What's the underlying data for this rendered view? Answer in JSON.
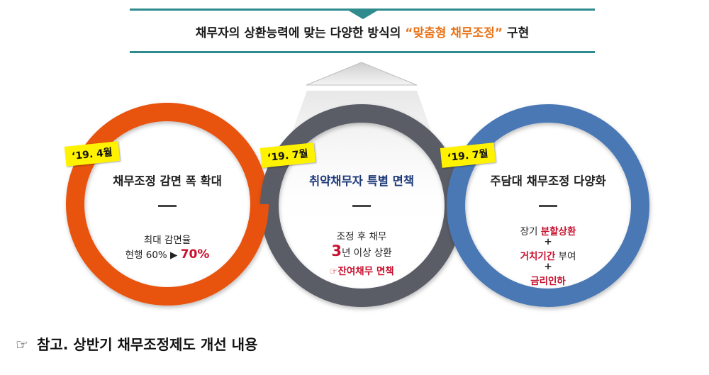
{
  "header": {
    "text_before": "채무자의 상환능력에 맞는 다양한 방식의 ",
    "highlight": "“맞춤형 채무조정”",
    "text_after": " 구현"
  },
  "rings": [
    {
      "date": "‘19. 4월",
      "title": "채무조정 감면 폭 확대",
      "line1": "최대 감면율",
      "line2_prefix": "현행 60% ▶ ",
      "line2_highlight": "70%",
      "color": "#e8520e"
    },
    {
      "date": "‘19. 7월",
      "title": "취약채무자 특별 면책",
      "line1": "조정 후 채무",
      "line2_big": "3",
      "line2_rest": "년 이상 상환",
      "line3_icon": "☞",
      "line3": "잔여채무 면책",
      "color": "#5a5b66"
    },
    {
      "date": "‘19. 7월",
      "title": "주담대 채무조정 다양화",
      "line1_prefix": "장기 ",
      "line1_highlight": "분할상환",
      "plus1": "+",
      "line2_highlight": "거치기간",
      "line2_suffix": " 부여",
      "plus2": "+",
      "line3_highlight": "금리인하",
      "color": "#4a78b5"
    }
  ],
  "footnote": {
    "icon": "☞",
    "text": "참고. 상반기 채무조정제도 개선 내용"
  },
  "colors": {
    "teal": "#2f8b8d",
    "accent": "#e8741a",
    "tag": "#fff200",
    "red": "#c8102e",
    "title_blue": "#1f3a7a"
  }
}
